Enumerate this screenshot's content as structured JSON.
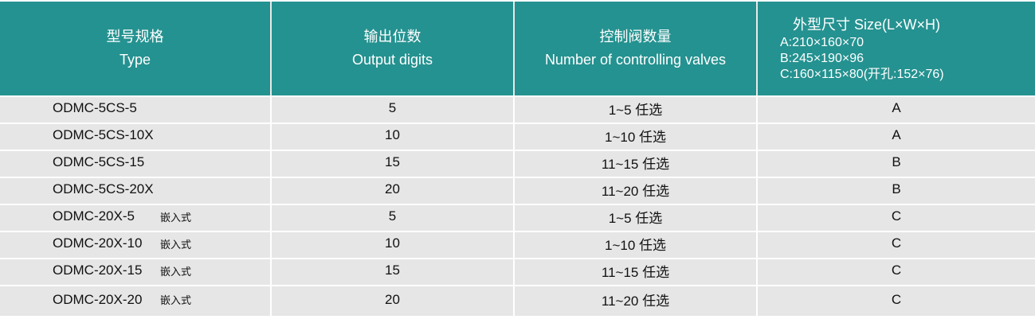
{
  "header": {
    "type": {
      "zh": "型号规格",
      "en": "Type"
    },
    "output_digits": {
      "zh": "输出位数",
      "en": "Output digits"
    },
    "valves": {
      "zh": "控制阀数量",
      "en": "Number of controlling valves"
    },
    "size": {
      "title": "外型尺寸 Size(L×W×H)",
      "dims": [
        "A:210×160×70",
        "B:245×190×96",
        "C:160×115×80(开孔:152×76)"
      ]
    }
  },
  "rows": [
    {
      "model": "ODMC-5CS-5",
      "tag": "",
      "digits": "5",
      "valves": "1~5 任选",
      "size": "A"
    },
    {
      "model": "ODMC-5CS-10X",
      "tag": "",
      "digits": "10",
      "valves": "1~10 任选",
      "size": "A"
    },
    {
      "model": "ODMC-5CS-15",
      "tag": "",
      "digits": "15",
      "valves": "11~15 任选",
      "size": "B"
    },
    {
      "model": "ODMC-5CS-20X",
      "tag": "",
      "digits": "20",
      "valves": "11~20 任选",
      "size": "B"
    },
    {
      "model": "ODMC-20X-5",
      "tag": "嵌入式",
      "digits": "5",
      "valves": "1~5 任选",
      "size": "C"
    },
    {
      "model": "ODMC-20X-10",
      "tag": "嵌入式",
      "digits": "10",
      "valves": "1~10 任选",
      "size": "C"
    },
    {
      "model": "ODMC-20X-15",
      "tag": "嵌入式",
      "digits": "15",
      "valves": "11~15 任选",
      "size": "C"
    },
    {
      "model": "ODMC-20X-20",
      "tag": "嵌入式",
      "digits": "20",
      "valves": "11~20 任选",
      "size": "C"
    }
  ]
}
